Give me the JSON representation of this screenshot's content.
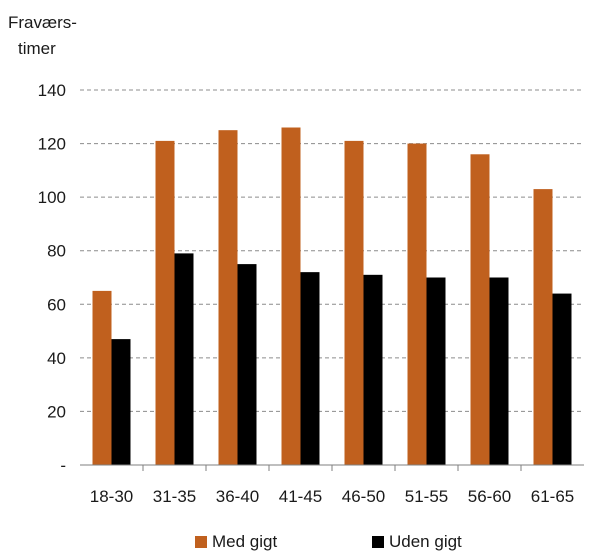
{
  "chart_data": {
    "type": "bar",
    "ylabel_lines": [
      "Fraværs-",
      "timer"
    ],
    "categories": [
      "18-30",
      "31-35",
      "36-40",
      "41-45",
      "46-50",
      "51-55",
      "56-60",
      "61-65"
    ],
    "series": [
      {
        "name": "Med gigt",
        "color": "#C0601E",
        "values": [
          65,
          121,
          125,
          126,
          121,
          120,
          116,
          103
        ]
      },
      {
        "name": "Uden gigt",
        "color": "#000000",
        "values": [
          47,
          79,
          75,
          72,
          71,
          70,
          70,
          64
        ]
      }
    ],
    "ylim": [
      0,
      140
    ],
    "yticks": [
      0,
      20,
      40,
      60,
      80,
      100,
      120,
      140
    ],
    "ytick_labels": [
      "-",
      "20",
      "40",
      "60",
      "80",
      "100",
      "120",
      "140"
    ],
    "grid": true,
    "grid_style": "dashed",
    "legend_position": "bottom"
  }
}
